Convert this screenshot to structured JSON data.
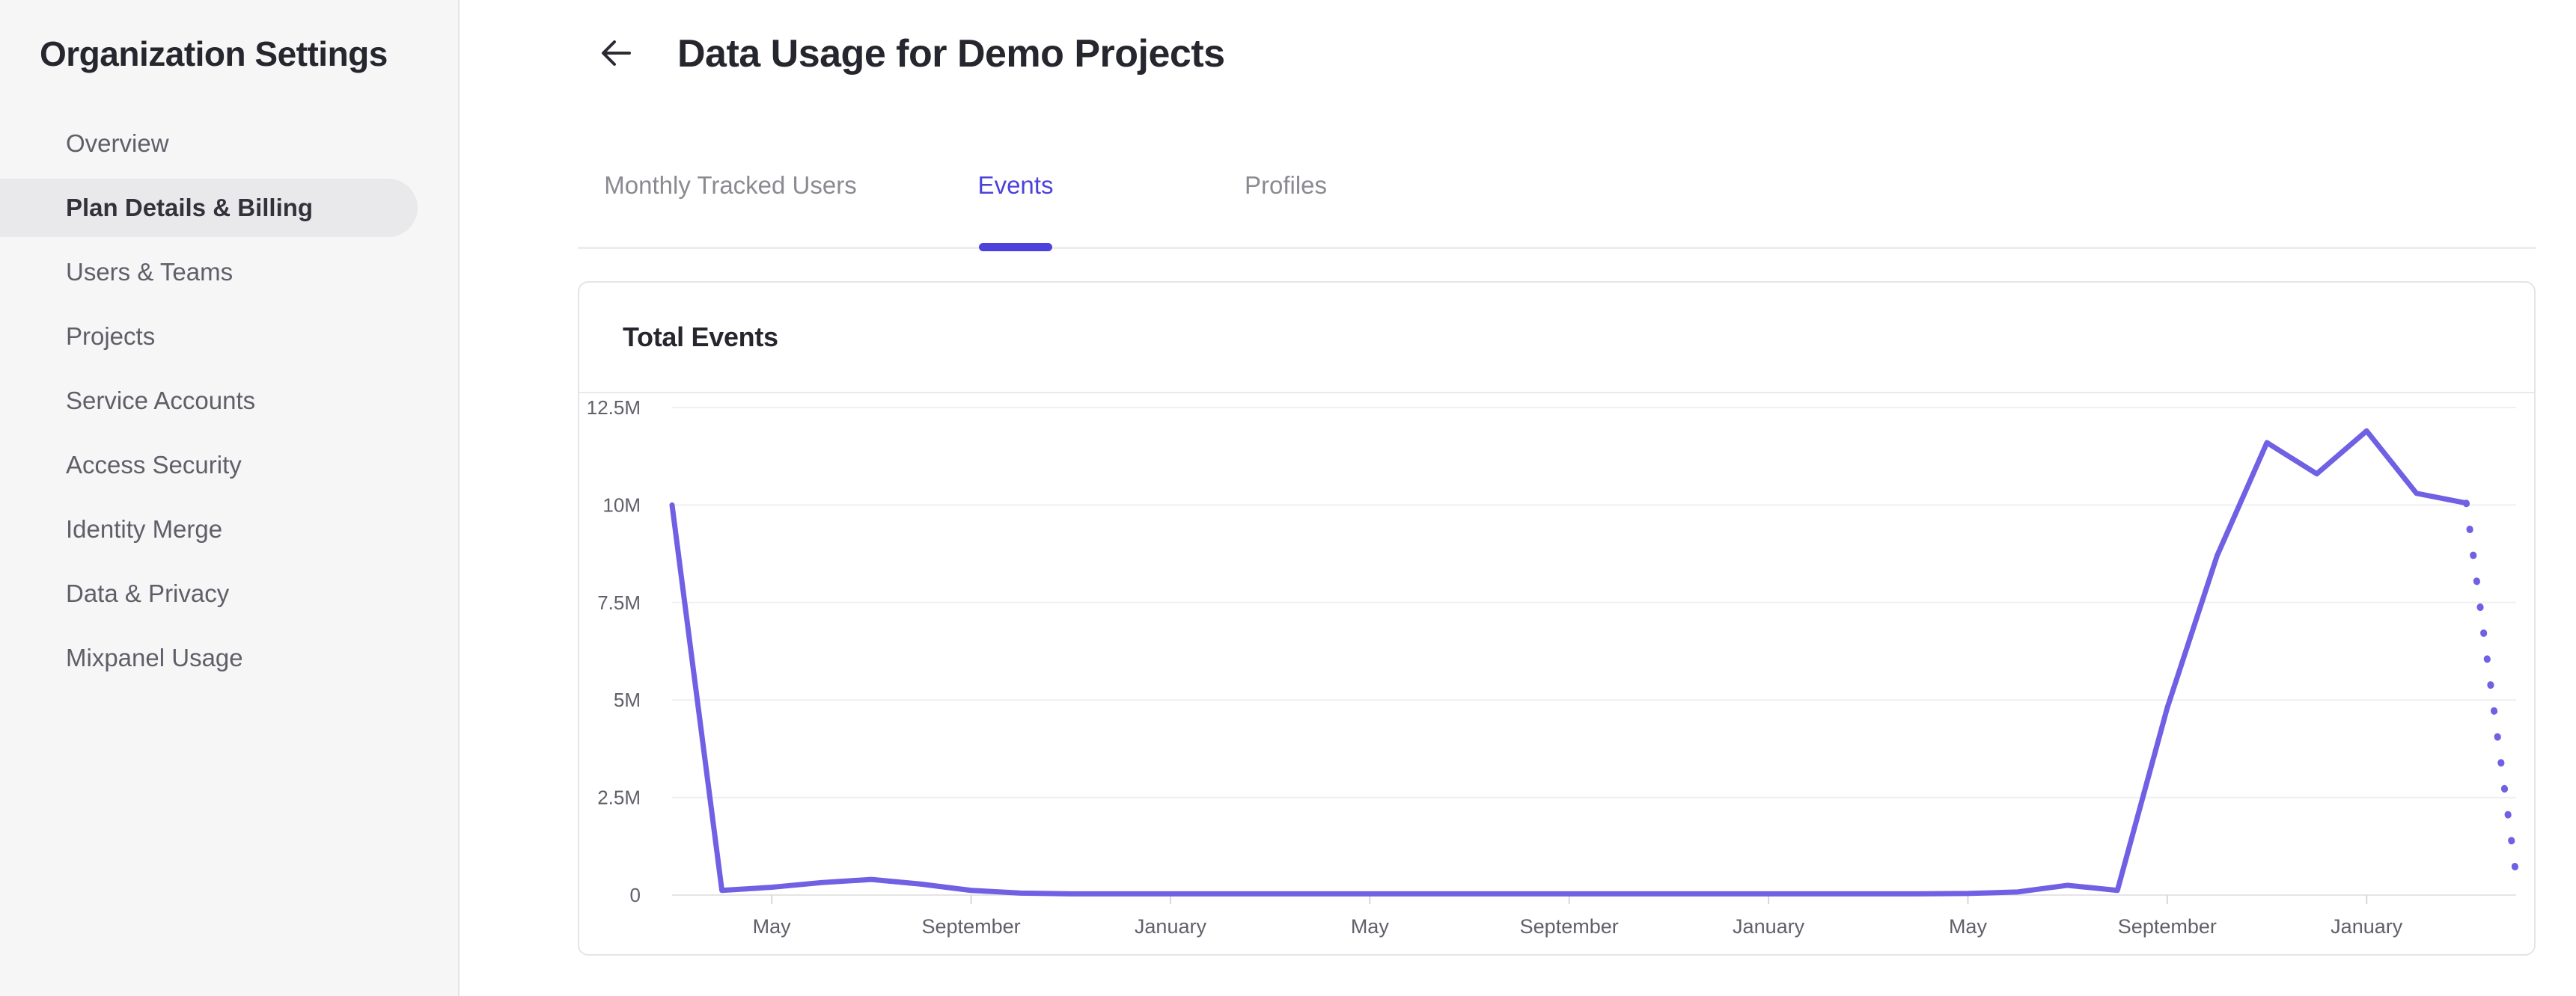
{
  "sidebar": {
    "title": "Organization Settings",
    "items": [
      {
        "label": "Overview",
        "active": false
      },
      {
        "label": "Plan Details & Billing",
        "active": true
      },
      {
        "label": "Users & Teams",
        "active": false
      },
      {
        "label": "Projects",
        "active": false
      },
      {
        "label": "Service Accounts",
        "active": false
      },
      {
        "label": "Access Security",
        "active": false
      },
      {
        "label": "Identity Merge",
        "active": false
      },
      {
        "label": "Data & Privacy",
        "active": false
      },
      {
        "label": "Mixpanel Usage",
        "active": false
      }
    ]
  },
  "header": {
    "back_icon": "left-arrow",
    "title": "Data Usage for Demo Projects"
  },
  "tabs": [
    {
      "label": "Monthly Tracked Users",
      "active": false
    },
    {
      "label": "Events",
      "active": true
    },
    {
      "label": "Profiles",
      "active": false
    }
  ],
  "card": {
    "title": "Total Events"
  },
  "colors": {
    "accent": "#4C42DB",
    "chart_line": "#7060E4",
    "sidebar_bg": "#F6F6F7",
    "sidebar_active_bg": "#E9E9EB",
    "card_border": "#E5E5E7",
    "grid_line": "#F0F0F1",
    "axis_line": "#E4E4E6",
    "tick_mark": "#D8D8DA",
    "tick_label": "#60606A",
    "text_dark": "#26262E",
    "text_gray": "#5F5F68",
    "tab_inactive": "#8A8A92"
  },
  "chart_data": {
    "type": "line",
    "title": "Total Events",
    "xlabel": "",
    "ylabel": "",
    "grid": true,
    "legend": false,
    "ylim_millions": [
      0,
      12.5
    ],
    "y_ticks": [
      {
        "v": 12.5,
        "label": "12.5M"
      },
      {
        "v": 10,
        "label": "10M"
      },
      {
        "v": 7.5,
        "label": "7.5M"
      },
      {
        "v": 5,
        "label": "5M"
      },
      {
        "v": 2.5,
        "label": "2.5M"
      },
      {
        "v": 0,
        "label": "0"
      }
    ],
    "x_ticks": [
      {
        "index": 2,
        "label": "May"
      },
      {
        "index": 6,
        "label": "September"
      },
      {
        "index": 10,
        "label": "January"
      },
      {
        "index": 14,
        "label": "May"
      },
      {
        "index": 18,
        "label": "September"
      },
      {
        "index": 22,
        "label": "January"
      },
      {
        "index": 26,
        "label": "May"
      },
      {
        "index": 30,
        "label": "September"
      },
      {
        "index": 34,
        "label": "January"
      }
    ],
    "series": [
      {
        "name": "Total Events",
        "color": "#7060E4",
        "unit": "millions of events per month",
        "values_millions": [
          10,
          0.12,
          0.2,
          0.32,
          0.4,
          0.28,
          0.12,
          0.05,
          0.03,
          0.03,
          0.03,
          0.03,
          0.03,
          0.03,
          0.03,
          0.03,
          0.03,
          0.03,
          0.03,
          0.03,
          0.03,
          0.03,
          0.03,
          0.03,
          0.03,
          0.03,
          0.04,
          0.08,
          0.25,
          0.12,
          4.8,
          8.7,
          11.6,
          10.8,
          11.9,
          10.3,
          10.05,
          0.5
        ],
        "projected_tail_points": 1
      }
    ]
  }
}
